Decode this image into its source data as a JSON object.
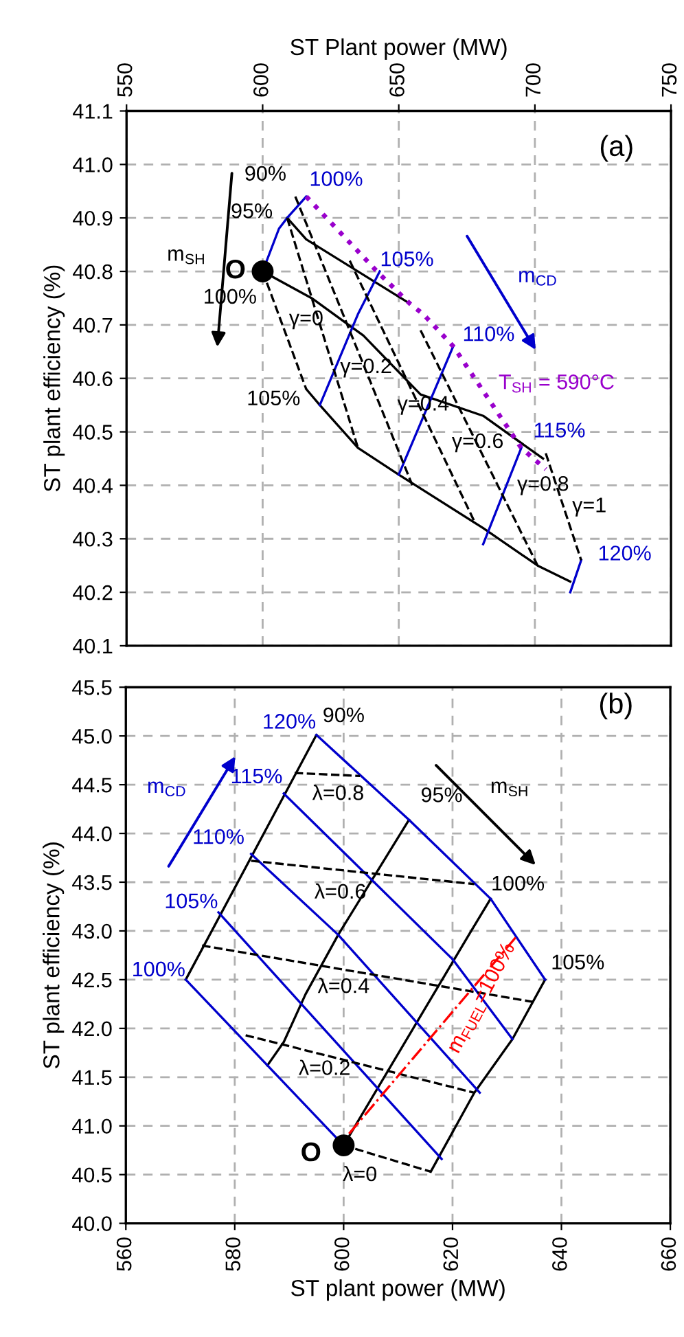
{
  "chart_data": [
    {
      "type": "line",
      "xlabel": "ST Plant power (MW)",
      "ylabel": "ST plant efficiency (%)",
      "xlim": [
        550,
        750
      ],
      "xticks": [
        550,
        600,
        650,
        700,
        750
      ],
      "ylim": [
        40.1,
        41.1
      ],
      "yticks": [
        40.1,
        40.2,
        40.3,
        40.4,
        40.5,
        40.6,
        40.7,
        40.8,
        40.9,
        {
          "value": 41,
          "label": "41.0"
        },
        41.1
      ],
      "grid": true,
      "series": [
        {
          "type": "line",
          "color": "#000000",
          "line_style": "solid",
          "x": [
            609,
            616,
            654
          ],
          "values": [
            40.9,
            40.86,
            40.74
          ]
        },
        {
          "type": "line",
          "color": "#000000",
          "line_style": "solid",
          "x": [
            600,
            618,
            637,
            658,
            681,
            703
          ],
          "values": [
            40.8,
            40.75,
            40.68,
            40.57,
            40.53,
            40.45
          ]
        },
        {
          "type": "line",
          "color": "#000000",
          "line_style": "solid",
          "x": [
            616,
            621,
            635,
            650,
            681,
            701,
            713
          ],
          "values": [
            40.58,
            40.55,
            40.47,
            40.42,
            40.32,
            40.25,
            40.22
          ]
        },
        {
          "type": "line",
          "color": "#0000cc",
          "line_style": "solid",
          "x": [
            600,
            606,
            609,
            616
          ],
          "values": [
            40.8,
            40.88,
            40.9,
            40.94
          ]
        },
        {
          "type": "line",
          "color": "#0000cc",
          "line_style": "solid",
          "x": [
            643,
            635,
            621
          ],
          "values": [
            40.8,
            40.72,
            40.55
          ]
        },
        {
          "type": "line",
          "color": "#0000cc",
          "line_style": "solid",
          "x": [
            670,
            650
          ],
          "values": [
            40.66,
            40.42
          ]
        },
        {
          "type": "line",
          "color": "#0000cc",
          "line_style": "solid",
          "x": [
            695,
            681
          ],
          "values": [
            40.47,
            40.29
          ]
        },
        {
          "type": "line",
          "color": "#0000cc",
          "line_style": "solid",
          "x": [
            717,
            713
          ],
          "values": [
            40.26,
            40.2
          ]
        },
        {
          "type": "line",
          "color": "#000000",
          "line_style": "dashed",
          "x": [
            600,
            616
          ],
          "values": [
            40.8,
            40.58
          ]
        },
        {
          "type": "line",
          "color": "#000000",
          "line_style": "dashed",
          "x": [
            609,
            635
          ],
          "values": [
            40.9,
            40.47
          ]
        },
        {
          "type": "line",
          "color": "#000000",
          "line_style": "dashed",
          "x": [
            612,
            655
          ],
          "values": [
            40.94,
            40.4
          ]
        },
        {
          "type": "line",
          "color": "#000000",
          "line_style": "dashed",
          "x": [
            632,
            678
          ],
          "values": [
            40.82,
            40.33
          ]
        },
        {
          "type": "line",
          "color": "#000000",
          "line_style": "dashed",
          "x": [
            658,
            701
          ],
          "values": [
            40.69,
            40.25
          ]
        },
        {
          "type": "line",
          "color": "#000000",
          "line_style": "dashed",
          "x": [
            704,
            717
          ],
          "values": [
            40.46,
            40.26
          ]
        },
        {
          "type": "line",
          "color": "#9900cc",
          "line_style": "dotted",
          "x": [
            616,
            642,
            654,
            659,
            670,
            695,
            704
          ],
          "values": [
            40.94,
            40.8,
            40.74,
            40.72,
            40.66,
            40.47,
            40.43
          ]
        },
        {
          "type": "scatter",
          "color": "#000000",
          "marker": "circle",
          "x": [
            600
          ],
          "values": [
            40.8
          ]
        }
      ],
      "annotations": [
        "(a)",
        "90%",
        "100%",
        "95%",
        "O",
        "100%",
        "105%",
        "m$_{SH}$",
        "m$_{CD}$",
        "γ=0",
        "110%",
        "γ=0.2",
        "T$_{SH}$ = 590°C",
        "105%",
        "γ=0.4",
        "115%",
        "γ=0.6",
        "γ=0.8",
        "γ=1",
        "120%"
      ]
    },
    {
      "type": "line",
      "xlabel": "ST plant power (MW)",
      "ylabel": "ST plant efficiency (%)",
      "xlim": [
        560,
        660
      ],
      "xticks": [
        560,
        580,
        600,
        620,
        640,
        660
      ],
      "ylim": [
        40,
        45.5
      ],
      "yticks": [
        {
          "value": 40,
          "label": "40.0"
        },
        40.5,
        {
          "value": 41,
          "label": "41.0"
        },
        41.5,
        {
          "value": 42,
          "label": "42.0"
        },
        42.5,
        {
          "value": 43,
          "label": "43.0"
        },
        43.5,
        {
          "value": 44,
          "label": "44.0"
        },
        44.5,
        {
          "value": 45,
          "label": "45.0"
        },
        45.5
      ],
      "grid": true,
      "series": [
        {
          "type": "line",
          "color": "#000000",
          "line_style": "solid",
          "x": [
            571,
            595
          ],
          "values": [
            42.5,
            45.01
          ]
        },
        {
          "type": "line",
          "color": "#000000",
          "line_style": "solid",
          "x": [
            586,
            589,
            593,
            599,
            612
          ],
          "values": [
            41.62,
            41.86,
            42.35,
            42.96,
            44.14
          ]
        },
        {
          "type": "line",
          "color": "#000000",
          "line_style": "solid",
          "x": [
            600,
            623,
            627
          ],
          "values": [
            40.8,
            42.96,
            43.33
          ]
        },
        {
          "type": "line",
          "color": "#000000",
          "line_style": "solid",
          "x": [
            616,
            624,
            631,
            637
          ],
          "values": [
            40.53,
            41.34,
            41.89,
            42.5
          ]
        },
        {
          "type": "line",
          "color": "#0000cc",
          "line_style": "solid",
          "x": [
            571,
            600
          ],
          "values": [
            42.5,
            40.8
          ]
        },
        {
          "type": "line",
          "color": "#0000cc",
          "line_style": "solid",
          "x": [
            577,
            618
          ],
          "values": [
            43.19,
            40.66
          ]
        },
        {
          "type": "line",
          "color": "#0000cc",
          "line_style": "solid",
          "x": [
            583,
            599,
            625
          ],
          "values": [
            43.79,
            42.96,
            41.34
          ]
        },
        {
          "type": "line",
          "color": "#0000cc",
          "line_style": "solid",
          "x": [
            589,
            620,
            631
          ],
          "values": [
            44.41,
            42.71,
            41.89
          ]
        },
        {
          "type": "line",
          "color": "#0000cc",
          "line_style": "solid",
          "x": [
            595,
            612,
            627,
            637
          ],
          "values": [
            45.01,
            44.14,
            43.33,
            42.5
          ]
        },
        {
          "type": "line",
          "color": "#000000",
          "line_style": "dashed",
          "x": [
            600,
            616
          ],
          "values": [
            40.8,
            40.53
          ]
        },
        {
          "type": "line",
          "color": "#000000",
          "line_style": "dashed",
          "x": [
            582,
            624
          ],
          "values": [
            41.93,
            41.34
          ]
        },
        {
          "type": "line",
          "color": "#000000",
          "line_style": "dashed",
          "x": [
            574,
            635
          ],
          "values": [
            42.85,
            42.27
          ]
        },
        {
          "type": "line",
          "color": "#000000",
          "line_style": "dashed",
          "x": [
            583,
            624
          ],
          "values": [
            43.72,
            43.48
          ]
        },
        {
          "type": "line",
          "color": "#000000",
          "line_style": "dashed",
          "x": [
            591,
            603
          ],
          "values": [
            44.62,
            44.59
          ]
        },
        {
          "type": "line",
          "color": "#ff0000",
          "line_style": "dashdot",
          "x": [
            601,
            632
          ],
          "values": [
            40.92,
            42.96
          ]
        },
        {
          "type": "scatter",
          "color": "#000000",
          "marker": "circle",
          "x": [
            600
          ],
          "values": [
            40.8
          ]
        }
      ],
      "annotations": [
        "(b)",
        "120%",
        "90%",
        "m$_{CD}$",
        "115%",
        "λ=0.8",
        "95%",
        "m$_{SH}$",
        "110%",
        "100%",
        "λ=0.6",
        "105%",
        "100%",
        "105%",
        "λ=0.4",
        "m$_{FUEL}$=100%",
        "λ=0.2",
        "O",
        "λ=0"
      ]
    }
  ]
}
